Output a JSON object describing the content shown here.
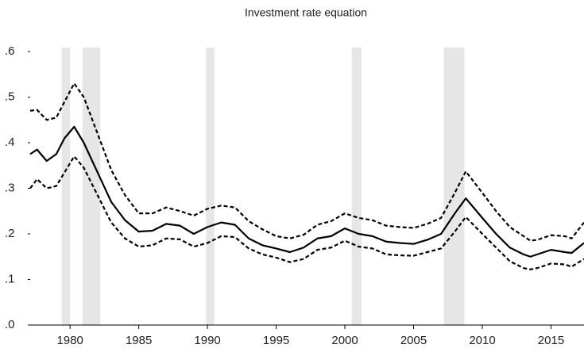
{
  "chart_data": {
    "type": "line",
    "title": "Investment rate equation",
    "x": [
      1977.1,
      1977.6,
      1978.3,
      1979,
      1979.6,
      1980.3,
      1981,
      1982,
      1983,
      1984,
      1985,
      1986,
      1987,
      1988,
      1989,
      1990,
      1991,
      1992,
      1993,
      1994,
      1995,
      1996,
      1997,
      1998,
      1999,
      2000,
      2001,
      2002,
      2003,
      2004,
      2005,
      2006,
      2007,
      2008,
      2008.8,
      2010,
      2011,
      2012,
      2013,
      2013.5,
      2014,
      2015,
      2016,
      2016.5,
      2017.4
    ],
    "series": [
      {
        "color": "#000000",
        "style": "solid",
        "values": [
          0.375,
          0.385,
          0.36,
          0.375,
          0.41,
          0.435,
          0.4,
          0.335,
          0.27,
          0.23,
          0.205,
          0.207,
          0.222,
          0.218,
          0.2,
          0.215,
          0.225,
          0.22,
          0.19,
          0.175,
          0.168,
          0.16,
          0.17,
          0.19,
          0.195,
          0.212,
          0.2,
          0.195,
          0.183,
          0.18,
          0.178,
          0.187,
          0.2,
          0.245,
          0.278,
          0.235,
          0.2,
          0.17,
          0.155,
          0.15,
          0.155,
          0.165,
          0.16,
          0.158,
          0.18
        ]
      },
      {
        "color": "#000000",
        "style": "dashed",
        "values": [
          0.47,
          0.472,
          0.45,
          0.455,
          0.49,
          0.53,
          0.5,
          0.42,
          0.34,
          0.285,
          0.245,
          0.245,
          0.258,
          0.25,
          0.24,
          0.255,
          0.262,
          0.258,
          0.228,
          0.21,
          0.195,
          0.19,
          0.198,
          0.22,
          0.228,
          0.245,
          0.235,
          0.23,
          0.218,
          0.215,
          0.213,
          0.222,
          0.235,
          0.29,
          0.337,
          0.29,
          0.25,
          0.215,
          0.195,
          0.185,
          0.187,
          0.197,
          0.195,
          0.19,
          0.225
        ]
      },
      {
        "color": "#000000",
        "style": "dashed",
        "values": [
          0.3,
          0.32,
          0.3,
          0.305,
          0.335,
          0.37,
          0.345,
          0.285,
          0.225,
          0.19,
          0.172,
          0.175,
          0.19,
          0.188,
          0.172,
          0.18,
          0.195,
          0.193,
          0.168,
          0.155,
          0.148,
          0.138,
          0.145,
          0.165,
          0.17,
          0.185,
          0.172,
          0.168,
          0.155,
          0.153,
          0.152,
          0.16,
          0.168,
          0.205,
          0.237,
          0.2,
          0.17,
          0.14,
          0.125,
          0.122,
          0.125,
          0.135,
          0.133,
          0.128,
          0.145
        ]
      }
    ],
    "recessions": [
      [
        1979.4,
        1980.0
      ],
      [
        1980.9,
        1982.2
      ],
      [
        1989.9,
        1990.5
      ],
      [
        2000.5,
        2001.2
      ],
      [
        2007.2,
        2008.7
      ]
    ],
    "recession_color": "#e6e6e6",
    "xlim": [
      1977.1,
      2017.4
    ],
    "xticks": [
      1980,
      1985,
      1990,
      1995,
      2000,
      2005,
      2010,
      2015
    ],
    "ylim": [
      0,
      0.6
    ],
    "yticks": [
      {
        "value": 0,
        "label": ".0"
      },
      {
        "value": 0.1,
        "label": ".1"
      },
      {
        "value": 0.2,
        "label": ".2"
      },
      {
        "value": 0.3,
        "label": ".3"
      },
      {
        "value": 0.4,
        "label": ".4"
      },
      {
        "value": 0.5,
        "label": ".5"
      },
      {
        "value": 0.6,
        "label": ".6"
      }
    ]
  }
}
